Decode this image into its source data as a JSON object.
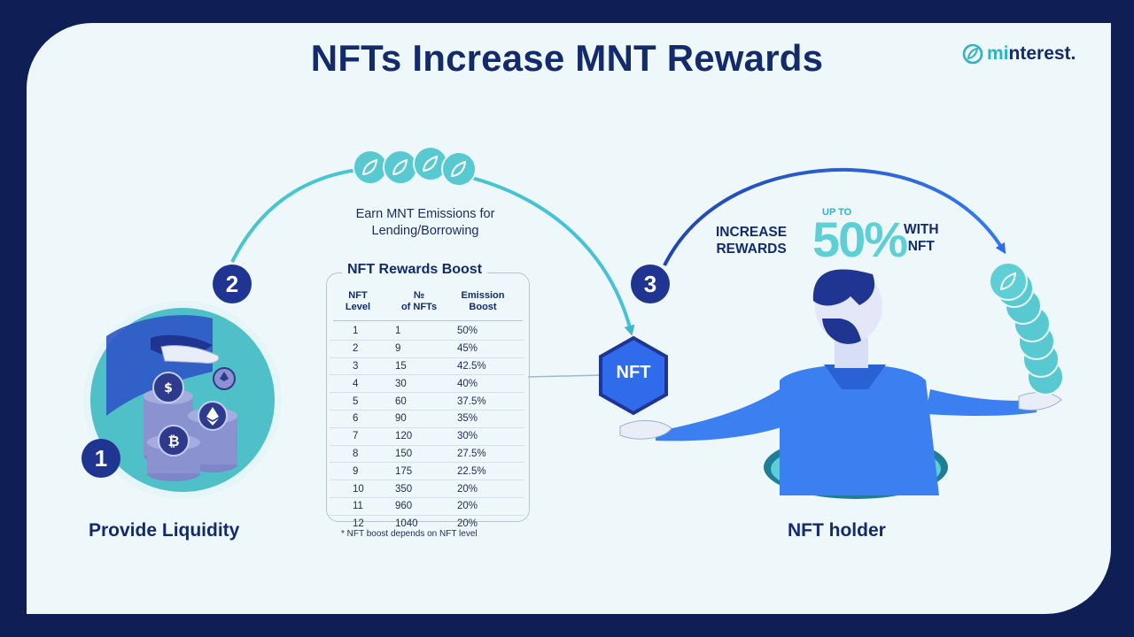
{
  "title": "NFTs Increase MNT Rewards",
  "brand": {
    "logo_part1": "mi",
    "logo_part2": "nterest."
  },
  "steps": [
    {
      "number": "1",
      "caption": "Provide Liquidity"
    },
    {
      "number": "2",
      "caption_line1": "Earn MNT Emissions for",
      "caption_line2": "Lending/Borrowing"
    },
    {
      "number": "3",
      "caption": "NFT holder"
    }
  ],
  "table": {
    "title": "NFT Rewards Boost",
    "headers": {
      "level_line1": "NFT",
      "level_line2": "Level",
      "count_line1": "№",
      "count_line2": "of NFTs",
      "boost_line1": "Emission",
      "boost_line2": "Boost"
    },
    "rows": [
      {
        "level": "1",
        "count": "1",
        "boost": "50%"
      },
      {
        "level": "2",
        "count": "9",
        "boost": "45%"
      },
      {
        "level": "3",
        "count": "15",
        "boost": "42.5%"
      },
      {
        "level": "4",
        "count": "30",
        "boost": "40%"
      },
      {
        "level": "5",
        "count": "60",
        "boost": "37.5%"
      },
      {
        "level": "6",
        "count": "90",
        "boost": "35%"
      },
      {
        "level": "7",
        "count": "120",
        "boost": "30%"
      },
      {
        "level": "8",
        "count": "150",
        "boost": "27.5%"
      },
      {
        "level": "9",
        "count": "175",
        "boost": "22.5%"
      },
      {
        "level": "10",
        "count": "350",
        "boost": "20%"
      },
      {
        "level": "11",
        "count": "960",
        "boost": "20%"
      },
      {
        "level": "12",
        "count": "1040",
        "boost": "20%"
      }
    ],
    "footnote": "* NFT boost depends on NFT level"
  },
  "promo": {
    "line1": "INCREASE",
    "line2": "REWARDS",
    "up_to": "UP TO",
    "percent": "50%",
    "with_line1": "WITH",
    "with_line2": "NFT"
  },
  "nft_badge": "NFT",
  "coin_icons": {
    "coin_1": "usdc-icon",
    "coin_2": "ethereum-icon",
    "coin_3": "bitcoin-icon"
  },
  "colors": {
    "frame": "#0f1f55",
    "card": "#eef8fb",
    "navy": "#132a6b",
    "teal": "#5ed0d5",
    "blue": "#2f6bea",
    "badge": "#1f3591"
  }
}
